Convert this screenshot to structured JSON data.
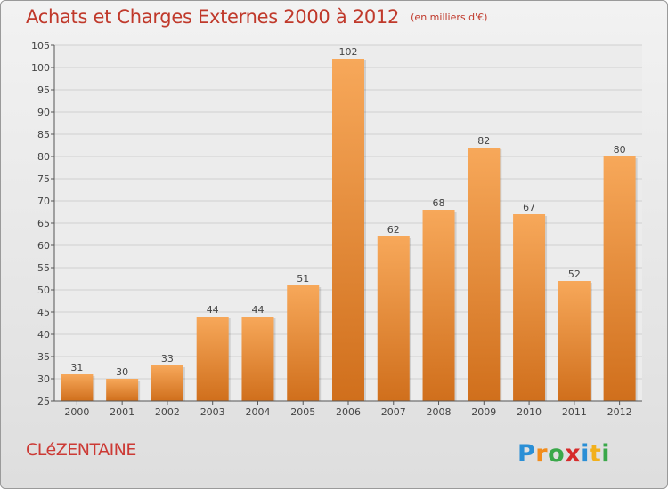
{
  "header": {
    "title": "Achats et Charges Externes 2000 à 2012",
    "unit": "(en milliers d'€)"
  },
  "footer": {
    "commune": "CLéZENTAINE",
    "logo_text": "Proxiti"
  },
  "colors": {
    "title": "#c0392b",
    "bar_light": "#f7a85a",
    "bar_dark": "#d06f1c",
    "grid": "#cfcfcf"
  },
  "chart_data": {
    "type": "bar",
    "categories": [
      "2000",
      "2001",
      "2002",
      "2003",
      "2004",
      "2005",
      "2006",
      "2007",
      "2008",
      "2009",
      "2010",
      "2011",
      "2012"
    ],
    "values": [
      31,
      30,
      33,
      44,
      44,
      51,
      102,
      62,
      68,
      82,
      67,
      52,
      80
    ],
    "yticks": [
      "25",
      "30",
      "35",
      "40",
      "45",
      "50",
      "55",
      "60",
      "65",
      "70",
      "75",
      "80",
      "85",
      "90",
      "95",
      "100",
      "105"
    ],
    "ylim": [
      25,
      105
    ],
    "grid": true,
    "data_labels": true
  }
}
